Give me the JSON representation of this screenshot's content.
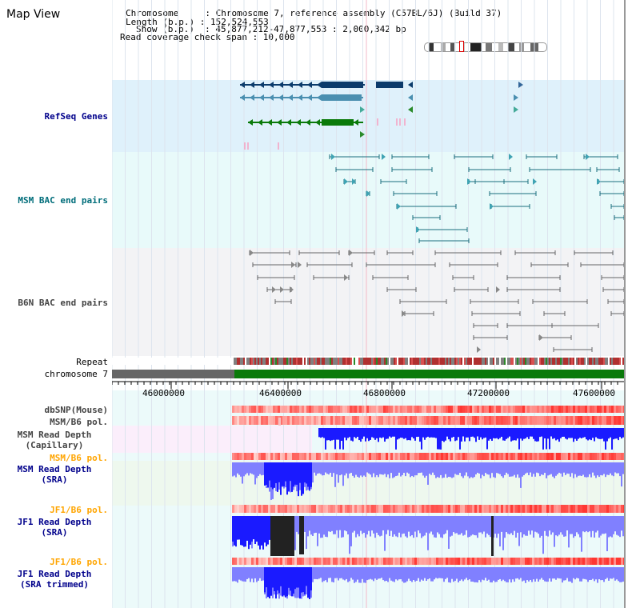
{
  "title": "Map View",
  "header": {
    "chromosome": "Chromosome     : Chromosome 7, reference assembly (C57BL/6J) (Build 37)",
    "length": "Length (b.p.) : 152,524,553",
    "show": "Show (b.p.)  : 45,877,212-47,877,553 : 2,000,342 bp",
    "coverage": "Read coverage check span : 10,000"
  },
  "tracks": {
    "refseq": "RefSeq Genes",
    "msm_bac": "MSM BAC end pairs",
    "b6n_bac": "B6N BAC end pairs",
    "repeat": "Repeat",
    "chromosome": "chromosome 7",
    "dbsnp": "dbSNP(Mouse)",
    "msm_pol": "MSM/B6 pol.",
    "msm_depth_cap_1": "MSM Read Depth",
    "msm_depth_cap_2": "(Capillary)",
    "msm_pol2": "MSM/B6 pol.",
    "msm_sra_1": "MSM Read Depth",
    "msm_sra_2": "(SRA)",
    "jf1_pol": "JF1/B6 pol.",
    "jf1_sra_1": "JF1 Read Depth",
    "jf1_sra_2": "(SRA)",
    "jf1_pol2": "JF1/B6 pol.",
    "jf1_trim_1": "JF1 Read Depth",
    "jf1_trim_2": "(SRA trimmed)"
  },
  "axis": {
    "ticks": [
      "46000000",
      "46400000",
      "46800000",
      "47200000",
      "47600000"
    ]
  },
  "colors": {
    "refseq_bg": "#dff1fb",
    "msm_bac_bg": "#e8fafa",
    "b6n_bac_bg": "#f3f3f5",
    "chrom_green": "#0a7a0a",
    "chrom_gray": "#666666",
    "depth_blue": "#1a1aff",
    "depth_light": "#8080ff",
    "label_navy": "#00008b",
    "label_teal": "#006d7a",
    "label_orange": "#ffa500",
    "label_gray": "#444444"
  }
}
